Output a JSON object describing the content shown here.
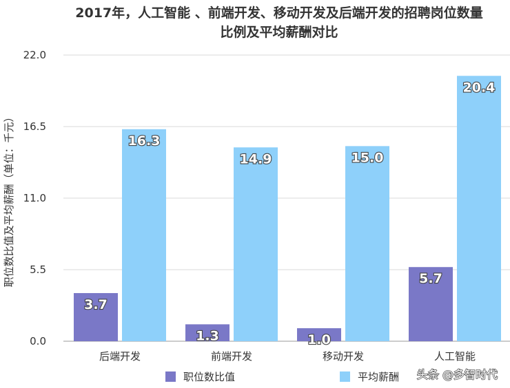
{
  "chart_data": {
    "type": "bar",
    "title_lines": [
      "2017年，人工智能 、前端开发、移动开发及后端开发的招聘岗位数量",
      "比例及平均薪酬对比"
    ],
    "ylabel": "职位数比值及平均薪酬（单位：千元）",
    "xlabel": "",
    "categories": [
      "后端开发",
      "前端开发",
      "移动开发",
      "人工智能"
    ],
    "series": [
      {
        "name": "职位数比值",
        "values": [
          3.7,
          1.3,
          1.0,
          5.7
        ],
        "color": "#7a78c7"
      },
      {
        "name": "平均薪酬",
        "values": [
          16.3,
          14.9,
          15.0,
          20.4
        ],
        "color": "#8ed0fa"
      }
    ],
    "value_labels": [
      [
        "3.7",
        "1.3",
        "1.0",
        "5.7"
      ],
      [
        "16.3",
        "14.9",
        "15.0",
        "20.4"
      ]
    ],
    "ylim": [
      0,
      22
    ],
    "yticks": [
      "0.0",
      "5.5",
      "11.0",
      "16.5",
      "22.0"
    ],
    "ytick_values": [
      0,
      5.5,
      11,
      16.5,
      22
    ],
    "grid": true,
    "legend_position": "bottom"
  },
  "watermark": {
    "text": "头条 @多智时代"
  },
  "colors": {
    "grid": "#d9d9d9",
    "axis": "#999999"
  }
}
